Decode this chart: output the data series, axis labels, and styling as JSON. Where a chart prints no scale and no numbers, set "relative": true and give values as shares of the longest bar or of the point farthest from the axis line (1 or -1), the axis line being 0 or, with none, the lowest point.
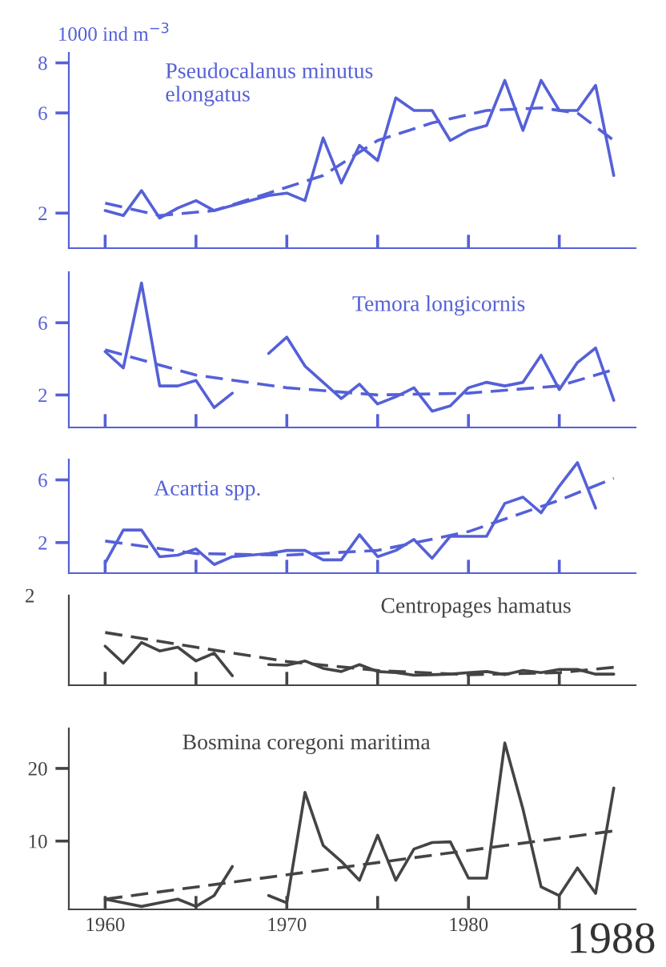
{
  "chart_data": [
    {
      "type": "line",
      "ylabel": "1000 ind m$^{−3}$",
      "annotations": [
        "Pseudocalanus minutus\nelongatus"
      ],
      "xlim": [
        1958,
        1989.2
      ],
      "xticks": [
        1960,
        {
          "value": 1965,
          "label": null
        },
        1970,
        {
          "value": 1975,
          "label": null
        },
        1980,
        {
          "value": 1985,
          "label": null
        }
      ],
      "ylim": [
        0.6,
        8.4
      ],
      "yticks": [
        2,
        6,
        8
      ],
      "tick_labels": "y",
      "grid": false,
      "legend": false,
      "series": [
        {
          "color": "#5560d8",
          "line_style": "solid",
          "x": [
            1960,
            1961,
            1962,
            1963,
            1964,
            1965,
            1966,
            1967,
            1968,
            1969,
            1970,
            1971,
            1972,
            1973,
            1974,
            1975,
            1976,
            1977,
            1978,
            1979,
            1980,
            1981,
            1982,
            1983,
            1984,
            1985,
            1986,
            1987,
            1988
          ],
          "values": [
            2.1,
            1.9,
            2.9,
            1.8,
            2.2,
            2.5,
            2.1,
            2.3,
            2.5,
            2.7,
            2.8,
            2.5,
            5.0,
            3.2,
            4.7,
            4.1,
            6.6,
            6.1,
            6.1,
            4.9,
            5.3,
            5.5,
            7.3,
            5.3,
            7.3,
            6.1,
            6.1,
            7.1,
            3.5
          ]
        },
        {
          "color": "#5560d8",
          "line_style": "dashed",
          "x": [
            1960,
            1963,
            1966,
            1969,
            1972,
            1975,
            1978,
            1981,
            1984,
            1986,
            1988
          ],
          "values": [
            2.4,
            1.9,
            2.1,
            2.8,
            3.5,
            4.9,
            5.6,
            6.1,
            6.2,
            6.0,
            4.9
          ]
        }
      ]
    },
    {
      "type": "line",
      "annotations": [
        "Temora longicornis"
      ],
      "xlim": [
        1958,
        1989.2
      ],
      "xticks": [
        1960,
        {
          "value": 1965,
          "label": null
        },
        1970,
        {
          "value": 1975,
          "label": null
        },
        1980,
        {
          "value": 1985,
          "label": null
        }
      ],
      "ylim": [
        0.2,
        8.8
      ],
      "yticks": [
        2,
        6
      ],
      "tick_labels": "y",
      "grid": false,
      "legend": false,
      "series": [
        {
          "color": "#5560d8",
          "line_style": "solid",
          "x": [
            1960,
            1961,
            1962,
            1963,
            1964,
            1965,
            1966,
            1967,
            1968,
            1969,
            1970,
            1971,
            1972,
            1973,
            1974,
            1975,
            1976,
            1977,
            1978,
            1979,
            1980,
            1981,
            1982,
            1983,
            1984,
            1985,
            1986,
            1987,
            1988
          ],
          "values": [
            4.4,
            3.5,
            8.2,
            2.5,
            2.5,
            2.8,
            1.3,
            2.1,
            null,
            4.3,
            5.2,
            3.6,
            2.7,
            1.8,
            2.6,
            1.5,
            1.9,
            2.4,
            1.1,
            1.4,
            2.4,
            2.7,
            2.5,
            2.7,
            4.2,
            2.3,
            3.8,
            4.6,
            1.7
          ]
        },
        {
          "color": "#5560d8",
          "line_style": "dashed",
          "x": [
            1960,
            1965,
            1970,
            1975,
            1980,
            1985,
            1988
          ],
          "values": [
            4.5,
            3.1,
            2.4,
            2.0,
            2.1,
            2.5,
            3.4
          ]
        }
      ]
    },
    {
      "type": "line",
      "annotations": [
        "Acartia spp."
      ],
      "xlim": [
        1958,
        1989.2
      ],
      "xticks": [
        1960,
        {
          "value": 1965,
          "label": null
        },
        1970,
        {
          "value": 1975,
          "label": null
        },
        1980,
        {
          "value": 1985,
          "label": null
        }
      ],
      "ylim": [
        0.05,
        7.3
      ],
      "yticks": [
        2,
        6
      ],
      "tick_labels": "y",
      "grid": false,
      "legend": false,
      "series": [
        {
          "color": "#5560d8",
          "line_style": "solid",
          "x": [
            1960,
            1961,
            1962,
            1963,
            1964,
            1965,
            1966,
            1967,
            1968,
            1969,
            1970,
            1971,
            1972,
            1973,
            1974,
            1975,
            1976,
            1977,
            1978,
            1979,
            1980,
            1981,
            1982,
            1983,
            1984,
            1985,
            1986,
            1987
          ],
          "values": [
            0.7,
            2.8,
            2.8,
            1.1,
            1.2,
            1.6,
            0.6,
            1.1,
            1.2,
            1.3,
            1.5,
            1.5,
            0.9,
            0.9,
            2.5,
            1.1,
            1.5,
            2.2,
            1.0,
            2.4,
            2.4,
            2.4,
            4.5,
            4.9,
            3.9,
            5.6,
            7.1,
            4.2
          ]
        },
        {
          "color": "#5560d8",
          "line_style": "dashed",
          "x": [
            1960,
            1965,
            1970,
            1975,
            1980,
            1985,
            1988
          ],
          "values": [
            2.1,
            1.3,
            1.2,
            1.5,
            2.7,
            4.7,
            6.1
          ]
        }
      ]
    },
    {
      "type": "line",
      "relative": true,
      "annotations": [
        "Centropages hamatus",
        "2"
      ],
      "xlim": [
        1958,
        1989.2
      ],
      "xticks": [
        1960,
        {
          "value": 1965,
          "label": null
        },
        1970,
        {
          "value": 1975,
          "label": null
        },
        1980,
        {
          "value": 1985,
          "label": null
        }
      ],
      "tick_labels": false,
      "grid": false,
      "legend": false,
      "series": [
        {
          "color": "#444444",
          "line_style": "solid",
          "x": [
            1960,
            1961,
            1962,
            1963,
            1964,
            1965,
            1966,
            1967,
            1968,
            1969,
            1970,
            1971,
            1972,
            1973,
            1974,
            1975,
            1976,
            1977,
            1978,
            1979,
            1980,
            1981,
            1982,
            1983,
            1984,
            1985,
            1986,
            1987,
            1988
          ],
          "values": [
            0.74,
            0.42,
            0.81,
            0.65,
            0.72,
            0.46,
            0.61,
            0.18,
            null,
            0.39,
            0.38,
            0.46,
            0.32,
            0.26,
            0.39,
            0.26,
            0.24,
            0.19,
            0.2,
            0.21,
            0.24,
            0.26,
            0.2,
            0.28,
            0.24,
            0.3,
            0.3,
            0.21,
            0.21
          ]
        },
        {
          "color": "#444444",
          "line_style": "dashed",
          "x": [
            1960,
            1965,
            1970,
            1975,
            1980,
            1985,
            1988
          ],
          "values": [
            1.0,
            0.72,
            0.45,
            0.28,
            0.2,
            0.24,
            0.34
          ]
        }
      ]
    },
    {
      "type": "line",
      "annotations": [
        "Bosmina coregoni maritima",
        "1988"
      ],
      "xlim": [
        1958,
        1989.2
      ],
      "xticks": [
        1960,
        {
          "value": 1965,
          "label": null
        },
        1970,
        {
          "value": 1975,
          "label": null
        },
        1980,
        {
          "value": 1985,
          "label": null
        }
      ],
      "ylim": [
        0.6,
        25.5
      ],
      "yticks": [
        10,
        20
      ],
      "grid": false,
      "legend": false,
      "series": [
        {
          "color": "#444444",
          "line_style": "solid",
          "x": [
            1960,
            1961,
            1962,
            1963,
            1964,
            1965,
            1966,
            1967,
            1968,
            1969,
            1970,
            1971,
            1972,
            1973,
            1974,
            1975,
            1976,
            1977,
            1978,
            1979,
            1980,
            1981,
            1982,
            1983,
            1984,
            1985,
            1986,
            1987,
            1988
          ],
          "values": [
            2,
            1.5,
            1,
            1.5,
            2,
            1,
            2.5,
            6.5,
            null,
            2.5,
            1.5,
            16.7,
            9.4,
            7.2,
            4.6,
            10.8,
            4.6,
            8.9,
            9.8,
            9.9,
            4.9,
            4.9,
            23.5,
            14.4,
            3.7,
            2.5,
            6.3,
            2.8,
            17.3
          ]
        },
        {
          "color": "#444444",
          "line_style": "dashed",
          "x": [
            1960,
            1988
          ],
          "values": [
            2.0,
            11.4
          ]
        }
      ]
    }
  ]
}
